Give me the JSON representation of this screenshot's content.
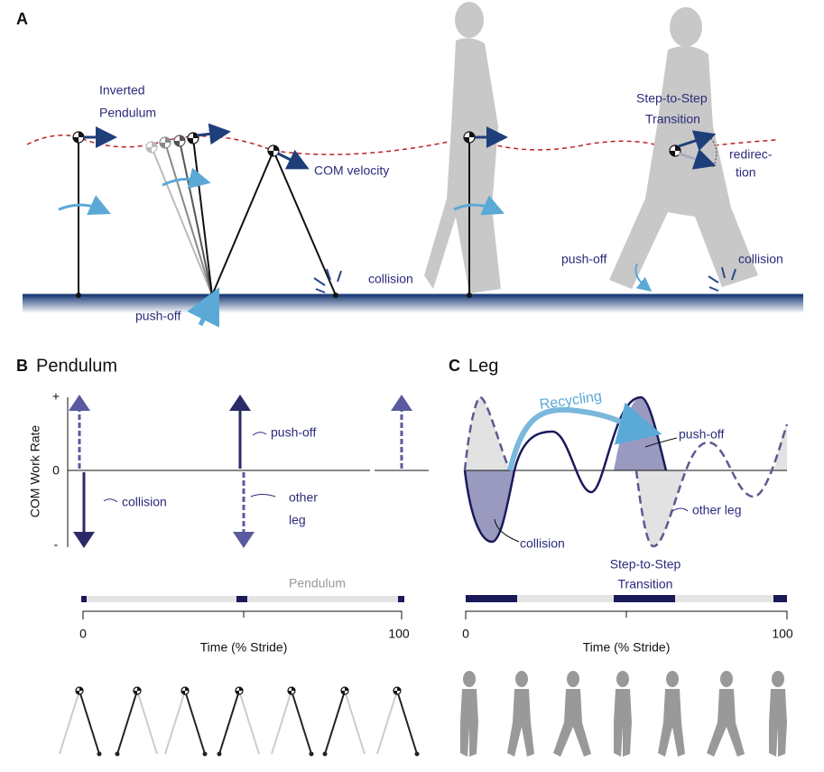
{
  "panel_a": {
    "label": "A",
    "inverted_pendulum": [
      "Inverted",
      "Pendulum"
    ],
    "com_velocity": "COM velocity",
    "collision_left": "collision",
    "push_off_left": "push-off",
    "step_to_step": [
      "Step-to-Step",
      "Transition"
    ],
    "redirection": [
      "redirec-",
      "tion"
    ],
    "push_off_right": "push-off",
    "collision_right": "collision"
  },
  "panel_b": {
    "label": "B",
    "title": "Pendulum",
    "y_axis_label": "COM Work Rate",
    "y_plus": "+",
    "y_zero": "0",
    "y_minus": "-",
    "push_off": "push-off",
    "collision": "collision",
    "other_leg": [
      "other",
      "leg"
    ],
    "bar_label": "Pendulum",
    "x_start": "0",
    "x_end": "100",
    "x_axis_label": "Time (% Stride)"
  },
  "panel_c": {
    "label": "C",
    "title": "Leg",
    "recycling": "Recycling",
    "push_off": "push-off",
    "collision": "collision",
    "other_leg": "other leg",
    "bar_label": [
      "Step-to-Step",
      "Transition"
    ],
    "x_start": "0",
    "x_end": "100",
    "x_axis_label": "Time (% Stride)"
  }
}
